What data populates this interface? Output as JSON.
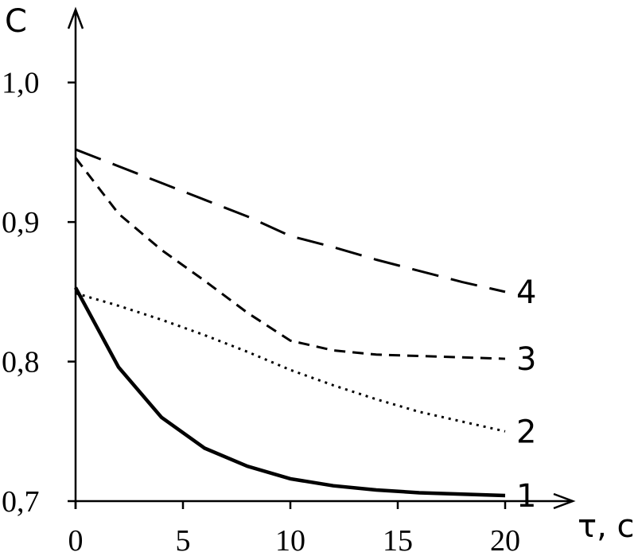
{
  "chart_data": {
    "type": "line",
    "x_label": "τ, c",
    "y_label": "C",
    "x": [
      0,
      2,
      4,
      6,
      8,
      10,
      12,
      14,
      16,
      18,
      20
    ],
    "series": [
      {
        "name": "1",
        "color": "#000000",
        "dash": "solid",
        "width": 4.5,
        "values": [
          0.853,
          0.796,
          0.76,
          0.738,
          0.725,
          0.716,
          0.711,
          0.708,
          0.706,
          0.705,
          0.704
        ]
      },
      {
        "name": "2",
        "color": "#000000",
        "dash": "dotted",
        "width": 3,
        "values": [
          0.849,
          0.84,
          0.83,
          0.819,
          0.807,
          0.794,
          0.783,
          0.773,
          0.764,
          0.757,
          0.75
        ]
      },
      {
        "name": "3",
        "color": "#000000",
        "dash": "short-dash",
        "width": 3,
        "values": [
          0.946,
          0.906,
          0.88,
          0.858,
          0.835,
          0.815,
          0.808,
          0.805,
          0.804,
          0.803,
          0.802
        ]
      },
      {
        "name": "4",
        "color": "#000000",
        "dash": "long-dash",
        "width": 3,
        "values": [
          0.952,
          0.94,
          0.928,
          0.916,
          0.904,
          0.89,
          0.882,
          0.873,
          0.865,
          0.857,
          0.85
        ]
      }
    ],
    "xlim": [
      0,
      23
    ],
    "ylim": [
      0.7,
      1.05
    ],
    "xticks": [
      0,
      5,
      10,
      15,
      20
    ],
    "yticks": [
      {
        "value": 0.7,
        "label": "0,7"
      },
      {
        "value": 0.8,
        "label": "0,8"
      },
      {
        "value": 0.9,
        "label": "0,9"
      },
      {
        "value": 1.0,
        "label": "1,0"
      }
    ],
    "grid": false
  }
}
